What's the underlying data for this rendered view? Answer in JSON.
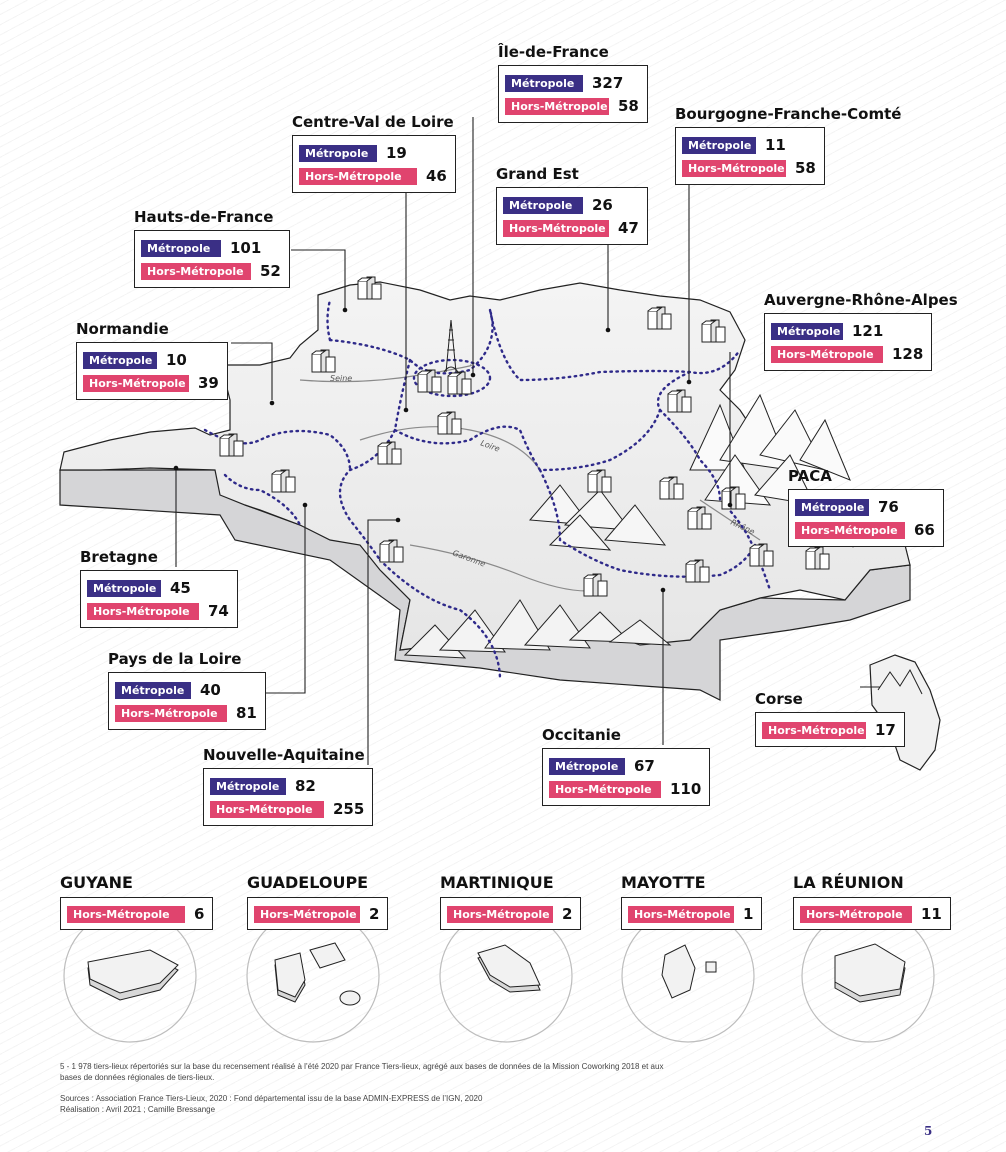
{
  "colors": {
    "metropole": "#3a2f85",
    "hors_metropole": "#e0446e"
  },
  "labels": {
    "metropole": "Métropole",
    "hors": "Hors-Métropole"
  },
  "regions": {
    "idf": {
      "name": "Île-de-France",
      "metropole": "327",
      "hors": "58"
    },
    "cvl": {
      "name": "Centre-Val de Loire",
      "metropole": "19",
      "hors": "46"
    },
    "bfc": {
      "name": "Bourgogne-Franche-Comté",
      "metropole": "11",
      "hors": "58"
    },
    "ge": {
      "name": "Grand Est",
      "metropole": "26",
      "hors": "47"
    },
    "hdf": {
      "name": "Hauts-de-France",
      "metropole": "101",
      "hors": "52"
    },
    "ara": {
      "name": "Auvergne-Rhône-Alpes",
      "metropole": "121",
      "hors": "128"
    },
    "nor": {
      "name": "Normandie",
      "metropole": "10",
      "hors": "39"
    },
    "paca": {
      "name": "PACA",
      "metropole": "76",
      "hors": "66"
    },
    "bre": {
      "name": "Bretagne",
      "metropole": "45",
      "hors": "74"
    },
    "pdl": {
      "name": "Pays de la Loire",
      "metropole": "40",
      "hors": "81"
    },
    "cor": {
      "name": "Corse",
      "hors": "17"
    },
    "occ": {
      "name": "Occitanie",
      "metropole": "67",
      "hors": "110"
    },
    "naq": {
      "name": "Nouvelle-Aquitaine",
      "metropole": "82",
      "hors": "255"
    }
  },
  "rivers": {
    "seine": "Seine",
    "loire": "Loire",
    "garonne": "Garonne",
    "rhone": "Rhône"
  },
  "dom": [
    {
      "name": "GUYANE",
      "hors": "6"
    },
    {
      "name": "GUADELOUPE",
      "hors": "2"
    },
    {
      "name": "MARTINIQUE",
      "hors": "2"
    },
    {
      "name": "MAYOTTE",
      "hors": "1"
    },
    {
      "name": "LA RÉUNION",
      "hors": "11"
    }
  ],
  "footnote": {
    "line1": "5 -  1 978 tiers-lieux répertoriés sur la base du recensement réalisé à l’été 2020 par France Tiers-lieux, agrégé aux bases de données de la Mission Coworking 2018 et aux",
    "line2": "bases de données régionales de tiers-lieux.",
    "sources": "Sources : Association France Tiers-Lieux, 2020 : Fond départemental issu de la base ADMIN-EXPRESS de l’IGN, 2020",
    "realisation": "Réalisation : Avril 2021 ; Camille Bressange"
  },
  "page_number": "5"
}
